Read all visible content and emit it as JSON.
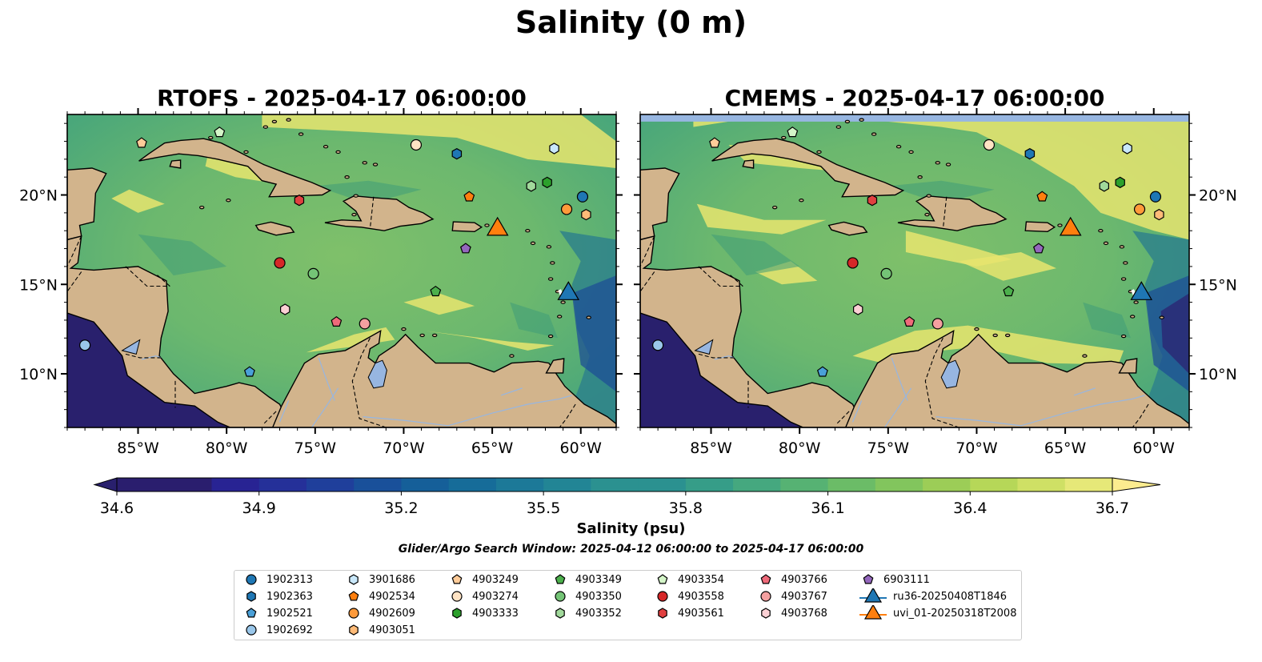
{
  "suptitle": "Salinity (0 m)",
  "panels": [
    {
      "title": "RTOFS - 2025-04-17 06:00:00",
      "source": "RTOFS"
    },
    {
      "title": "CMEMS - 2025-04-17 06:00:00",
      "source": "CMEMS"
    }
  ],
  "map_extent": {
    "lon_min": -89,
    "lon_max": -58,
    "lat_min": 7,
    "lat_max": 24.5
  },
  "axes": {
    "lon_ticks": [
      "85°W",
      "80°W",
      "75°W",
      "70°W",
      "65°W",
      "60°W"
    ],
    "lon_values": [
      -85,
      -80,
      -75,
      -70,
      -65,
      -60
    ],
    "lat_ticks": [
      "20°N",
      "15°N",
      "10°N"
    ],
    "lat_values": [
      20,
      15,
      10
    ]
  },
  "colorbar": {
    "label": "Salinity (psu)",
    "ticks": [
      "34.6",
      "34.9",
      "35.2",
      "35.5",
      "35.8",
      "36.1",
      "36.4",
      "36.7"
    ],
    "min": 34.6,
    "max": 36.7,
    "extend": "both",
    "colormap": "summer-like (navy to yellow)"
  },
  "search_window": "Glider/Argo Search Window: 2025-04-12 06:00:00 to 2025-04-17 06:00:00",
  "colors": {
    "land": "#d2b48c",
    "ocean_low": "#29206d",
    "ocean_high": "#fcec8f",
    "lakes": "#97b6e1"
  },
  "platforms": [
    {
      "id": "1902313",
      "marker": "circle",
      "color": "#1f77b4",
      "lon": -59.9,
      "lat": 19.9
    },
    {
      "id": "1902363",
      "marker": "hexagon",
      "color": "#1f77b4",
      "lon": -67.0,
      "lat": 22.3
    },
    {
      "id": "1902521",
      "marker": "pentagon",
      "color": "#4aa0d8",
      "lon": -78.7,
      "lat": 10.1
    },
    {
      "id": "1902692",
      "marker": "circle",
      "color": "#9ac7ea",
      "lon": -88.0,
      "lat": 11.6
    },
    {
      "id": "3901686",
      "marker": "hexagon",
      "color": "#c9e8fb",
      "lon": -61.5,
      "lat": 22.6
    },
    {
      "id": "4902534",
      "marker": "pentagon",
      "color": "#ff7f0e",
      "lon": -66.3,
      "lat": 19.9
    },
    {
      "id": "4902609",
      "marker": "circle",
      "color": "#ff9a3a",
      "lon": -60.8,
      "lat": 19.2
    },
    {
      "id": "4903051",
      "marker": "hexagon",
      "color": "#ffbb78",
      "lon": -59.7,
      "lat": 18.9
    },
    {
      "id": "4903249",
      "marker": "pentagon",
      "color": "#ffcc99",
      "lon": -84.8,
      "lat": 22.9
    },
    {
      "id": "4903274",
      "marker": "circle",
      "color": "#ffe3c4",
      "lon": -69.3,
      "lat": 22.8
    },
    {
      "id": "4903333",
      "marker": "hexagon",
      "color": "#2ca02c",
      "lon": -61.9,
      "lat": 20.7
    },
    {
      "id": "4903349",
      "marker": "pentagon",
      "color": "#4cb04c",
      "lon": -68.2,
      "lat": 14.6
    },
    {
      "id": "4903350",
      "marker": "circle",
      "color": "#74c476",
      "lon": -75.1,
      "lat": 15.6
    },
    {
      "id": "4903352",
      "marker": "hexagon",
      "color": "#a1d99b",
      "lon": -62.8,
      "lat": 20.5
    },
    {
      "id": "4903354",
      "marker": "pentagon",
      "color": "#d4f5c8",
      "lon": -80.4,
      "lat": 23.5
    },
    {
      "id": "4903558",
      "marker": "circle",
      "color": "#d62728",
      "lon": -77.0,
      "lat": 16.2
    },
    {
      "id": "4903561",
      "marker": "hexagon",
      "color": "#e04040",
      "lon": -75.9,
      "lat": 19.7
    },
    {
      "id": "4903766",
      "marker": "pentagon",
      "color": "#ef6a7a",
      "lon": -73.8,
      "lat": 12.9
    },
    {
      "id": "4903767",
      "marker": "circle",
      "color": "#f4a0a0",
      "lon": -72.2,
      "lat": 12.8
    },
    {
      "id": "4903768",
      "marker": "hexagon",
      "color": "#fbd0d4",
      "lon": -76.7,
      "lat": 13.6
    },
    {
      "id": "6903111",
      "marker": "pentagon",
      "color": "#9467bd",
      "lon": -66.5,
      "lat": 17.0
    }
  ],
  "gliders": [
    {
      "id": "ru36-20250408T1846",
      "marker": "triangle",
      "color": "#1f77b4",
      "lon": -60.7,
      "lat": 14.6
    },
    {
      "id": "uvi_01-20250318T2008",
      "marker": "triangle",
      "color": "#ff7f0e",
      "lon": -64.7,
      "lat": 18.2
    }
  ]
}
